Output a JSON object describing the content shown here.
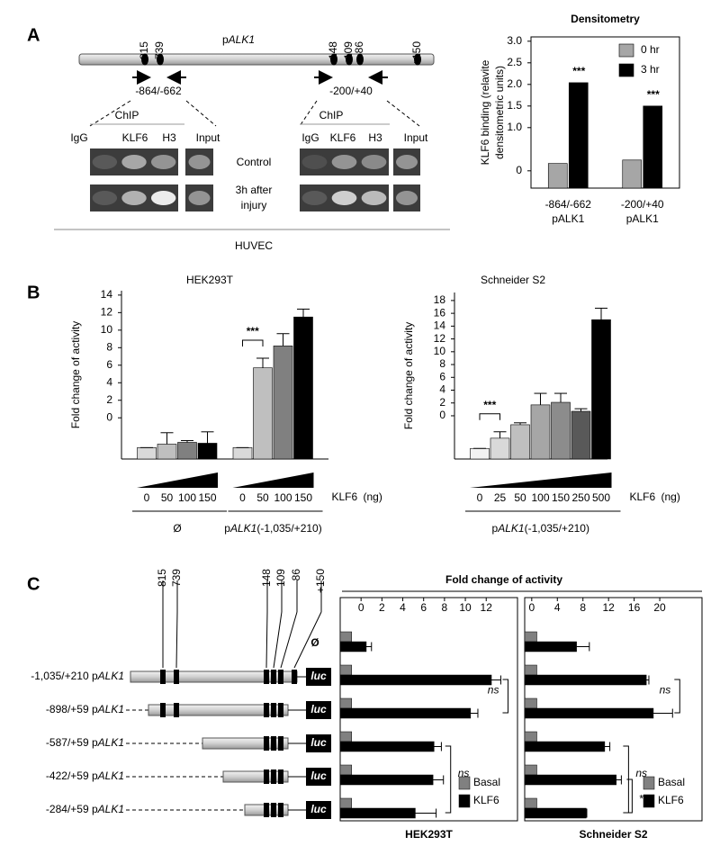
{
  "panel_a": {
    "label": "A",
    "promoter": [
      "p",
      "ALK1"
    ],
    "sites": [
      "-815",
      "-739",
      "-148",
      "-109",
      "-86",
      "+150"
    ],
    "amplicons": [
      "-864/-662",
      "-200/+40"
    ],
    "gel": {
      "chip": "ChIP",
      "lanes": [
        "IgG",
        "KLF6",
        "H3",
        "Input"
      ],
      "rows": [
        [
          "Control"
        ],
        [
          "3h after",
          "injury"
        ]
      ],
      "cell": "HUVEC"
    }
  },
  "panel_b": {
    "label": "B"
  },
  "panel_c": {
    "label": "C",
    "x_title": "Fold change of activity",
    "sites": [
      "-815",
      "-739",
      "-148",
      "-109",
      "-86",
      "+150"
    ],
    "empty": "Ø",
    "reporter": "luc",
    "constructs": [
      [
        "-1,035/+210 p",
        "ALK1"
      ],
      [
        "-898/+59 p",
        "ALK1"
      ],
      [
        "-587/+59 p",
        "ALK1"
      ],
      [
        "-422/+59 p",
        "ALK1"
      ],
      [
        "-284/+59 p",
        "ALK1"
      ]
    ]
  },
  "chart_data": [
    {
      "type": "bar",
      "title": "Densitometry",
      "y_label": [
        "KLF6 binding (relavite",
        "densitometric units)"
      ],
      "categories": [
        [
          "-864/-662",
          "pALK1"
        ],
        [
          "-200/+40",
          "pALK1"
        ]
      ],
      "series": [
        {
          "name": "0 hr",
          "color": "#a6a6a6",
          "values": [
            0.17,
            0.25
          ]
        },
        {
          "name": "3 hr",
          "color": "#000000",
          "values": [
            2.04,
            1.5
          ]
        }
      ],
      "ylim": [
        -0.4,
        3.1
      ],
      "yticks": [
        {
          "value": 3,
          "label": "3.0"
        },
        2.5,
        {
          "value": 2,
          "label": "2.0"
        },
        1.5,
        {
          "value": 1,
          "label": "1.0"
        },
        0
      ],
      "annotations": [
        "***",
        "***"
      ],
      "legend": "upper right"
    },
    {
      "type": "bar",
      "title": "HEK293T",
      "y_label": "Fold change of activity",
      "categories": [
        "0",
        "50",
        "100",
        "150",
        "0",
        "50",
        "100",
        "150"
      ],
      "values": [
        -3.4,
        -3.0,
        -2.8,
        -2.9,
        -3.4,
        5.7,
        8.2,
        11.5
      ],
      "errors": [
        0,
        1.3,
        0.2,
        1.3,
        0,
        1.1,
        1.4,
        0.9
      ],
      "colors": [
        "#d9d9d9",
        "#bfbfbf",
        "#808080",
        "#000000",
        "#d9d9d9",
        "#bfbfbf",
        "#808080",
        "#000000"
      ],
      "ylim": [
        -4.7,
        14.5
      ],
      "yticks": [
        14,
        12,
        10,
        8,
        6,
        4,
        2,
        0
      ],
      "annotations": [
        "***"
      ],
      "dose_label": "KLF6",
      "dose_unit": "(ng)",
      "groups": [
        [
          "Ø"
        ],
        [
          "p",
          "ALK1",
          "(-1,035/+210)"
        ]
      ]
    },
    {
      "type": "bar",
      "title": "Schneider S2",
      "y_label": "Fold change of activity",
      "categories": [
        "0",
        "25",
        "50",
        "100",
        "150",
        "250",
        "500"
      ],
      "values": [
        -5.1,
        -3.5,
        -1.4,
        1.7,
        2.1,
        0.7,
        15.0
      ],
      "errors": [
        0,
        1.0,
        0.3,
        1.8,
        1.4,
        0.4,
        1.8
      ],
      "colors": [
        "#f2f2f2",
        "#d9d9d9",
        "#bfbfbf",
        "#a6a6a6",
        "#8c8c8c",
        "#595959",
        "#000000"
      ],
      "ylim": [
        -6.75,
        19.25
      ],
      "yticks": [
        18,
        16,
        14,
        12,
        10,
        8,
        6,
        4,
        2,
        0
      ],
      "annotations": [
        "***"
      ],
      "dose_label": "KLF6",
      "dose_unit": "(ng)",
      "groups": [
        [
          "p",
          "ALK1",
          "(-1,035/+210)"
        ]
      ]
    },
    {
      "type": "hbar",
      "title": "HEK293T",
      "series": [
        {
          "name": "Basal",
          "color": "#808080",
          "values": [
            -0.9,
            -0.9,
            -0.9,
            -0.9,
            -0.9,
            -0.9
          ]
        },
        {
          "name": "KLF6",
          "color": "#000000",
          "values": [
            0.5,
            12.5,
            10.5,
            7.0,
            6.9,
            5.2
          ],
          "errors": [
            0.5,
            0.9,
            0.7,
            0.7,
            1.0,
            2.0
          ]
        }
      ],
      "xlim": [
        -2,
        15
      ],
      "xticks": [
        0,
        2,
        4,
        6,
        8,
        10,
        12
      ],
      "annotations": [
        "ns",
        "ns"
      ],
      "legend": "lower right"
    },
    {
      "type": "hbar",
      "title": "Schneider S2",
      "series": [
        {
          "name": "Basal",
          "color": "#808080",
          "values": [
            0.8,
            0.8,
            0.8,
            0.8,
            0.8,
            0.8
          ]
        },
        {
          "name": "KLF6",
          "color": "#000000",
          "values": [
            7.0,
            17.9,
            19.0,
            11.4,
            13.2,
            8.5
          ],
          "errors": [
            2.0,
            0.4,
            3.0,
            0.8,
            0.8,
            0.1
          ]
        }
      ],
      "xlim": [
        -1.1,
        26.6
      ],
      "xticks": [
        0,
        4,
        8,
        12,
        16,
        20
      ],
      "annotations": [
        "ns",
        "ns",
        "*"
      ],
      "legend": "lower right"
    }
  ]
}
